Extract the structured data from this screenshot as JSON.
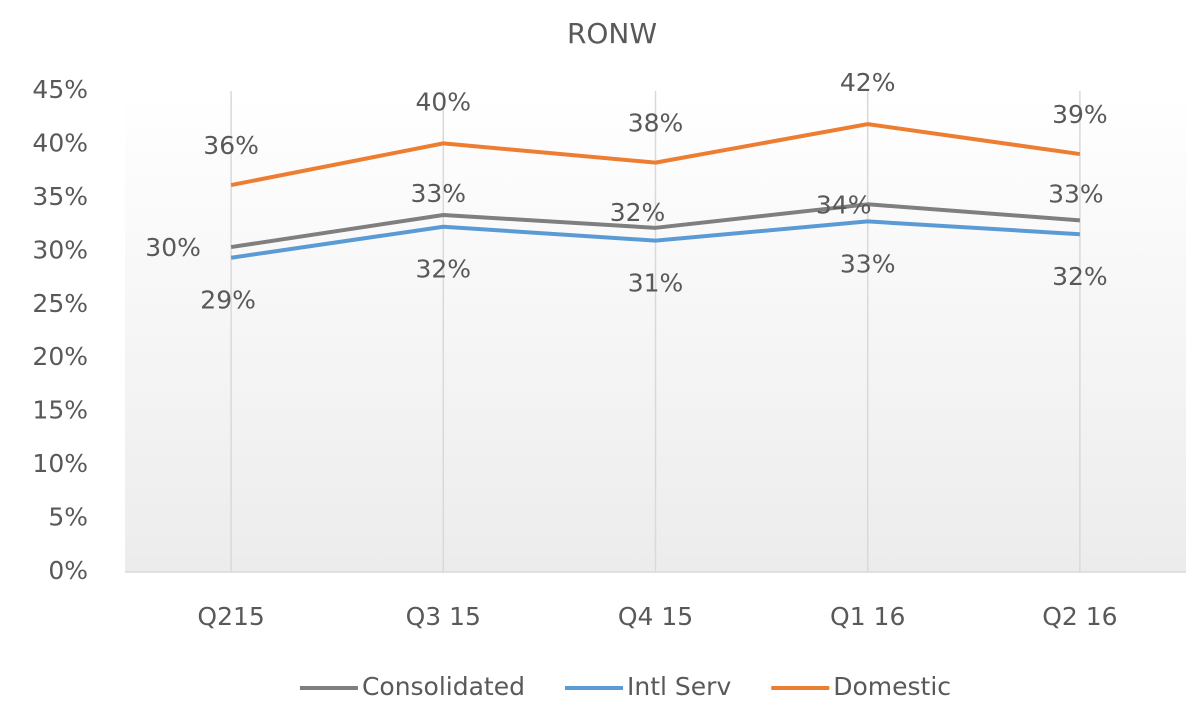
{
  "chart_data": {
    "type": "line",
    "title": "RONW",
    "categories": [
      "Q215",
      "Q3 15",
      "Q4 15",
      "Q1 16",
      "Q2 16"
    ],
    "series": [
      {
        "name": "Consolidated",
        "color": "#7f7f7f",
        "values": [
          30.4,
          33.4,
          32.2,
          34.4,
          32.9
        ],
        "value_labels": [
          "30%",
          "33%",
          "32%",
          "34%",
          "33%"
        ]
      },
      {
        "name": "Intl Serv",
        "color": "#5b9bd5",
        "values": [
          29.4,
          32.3,
          31.0,
          32.8,
          31.6
        ],
        "value_labels": [
          "29%",
          "32%",
          "31%",
          "33%",
          "32%"
        ]
      },
      {
        "name": "Domestic",
        "color": "#ed7d31",
        "values": [
          36.2,
          40.1,
          38.3,
          41.9,
          39.1
        ],
        "value_labels": [
          "36%",
          "40%",
          "38%",
          "42%",
          "39%"
        ]
      }
    ],
    "ylim": [
      0,
      45
    ],
    "yticks": [
      {
        "value": 0,
        "label": "0%"
      },
      {
        "value": 5,
        "label": "5%"
      },
      {
        "value": 10,
        "label": "10%"
      },
      {
        "value": 15,
        "label": "15%"
      },
      {
        "value": 20,
        "label": "20%"
      },
      {
        "value": 25,
        "label": "25%"
      },
      {
        "value": 30,
        "label": "30%"
      },
      {
        "value": 35,
        "label": "35%"
      },
      {
        "value": 40,
        "label": "40%"
      },
      {
        "value": 45,
        "label": "45%"
      }
    ],
    "xgrid": true,
    "legend": "bottom"
  }
}
